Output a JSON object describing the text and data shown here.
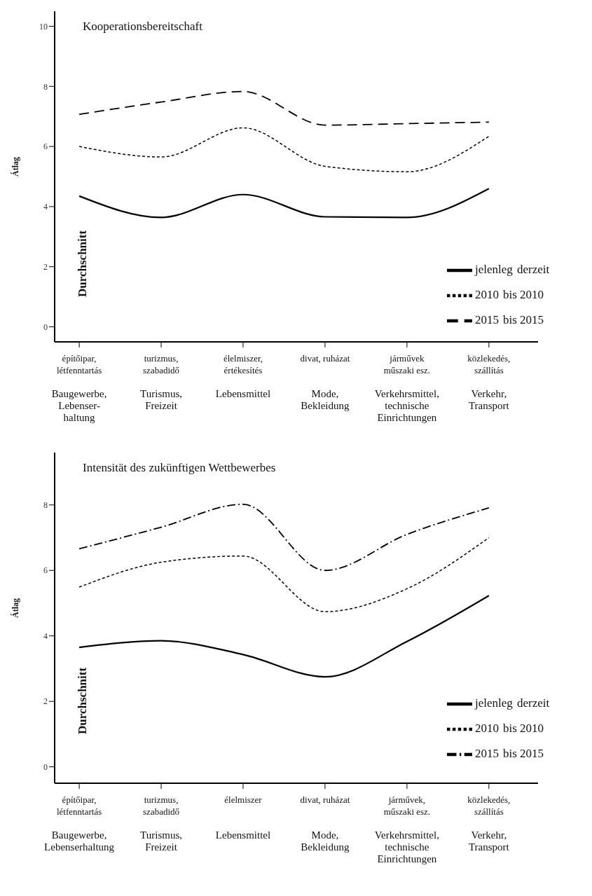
{
  "chart_data": [
    {
      "type": "line",
      "title": "Kooperationsbereitschaft",
      "ylabel": "Átlag",
      "annotations": [
        "Durchschnitt"
      ],
      "categories": [
        "építőipar,\nlétfenntartás\n\nBaugewerbe,\nLebenser-\nhaltung",
        "turizmus,\nszabadidő\n\nTurismus,\nFreizeit",
        "élelmiszer,\nértékesítés\n\nLebensmittel",
        "divat, ruházat\n\n\nMode,\nBekleidung",
        "járművek\nműszaki esz.\n\nVerkehrsmittel,\ntechnische\nEinrichtungen",
        "közlekedés,\nszállítás\n\nVerkehr,\nTransport"
      ],
      "series": [
        {
          "name": "jelenleg\tderzeit",
          "color": "#000000",
          "line_style": "solid",
          "values": [
            4.35,
            3.64,
            4.4,
            3.66,
            3.64,
            4.6
          ]
        },
        {
          "name": "2010\tbis 2010",
          "color": "#000000",
          "line_style": "dotted",
          "values": [
            6.0,
            5.65,
            6.62,
            5.34,
            5.16,
            6.34
          ]
        },
        {
          "name": "2015\tbis 2015",
          "color": "#000000",
          "line_style": "dashed",
          "values": [
            7.07,
            7.48,
            7.83,
            6.71,
            6.76,
            6.81
          ]
        }
      ],
      "ylim": [
        -0.5,
        10.5
      ],
      "yticks": [
        0,
        2,
        4,
        6,
        8,
        10
      ],
      "grid": false,
      "legend": "bottom right",
      "marker": "none"
    },
    {
      "type": "line",
      "title": "Intensität des zukünftigen Wettbewerbes",
      "ylabel": "Átlag",
      "annotations": [
        "Durchschnitt"
      ],
      "categories": [
        "építőipar,\nlétfenntartás\n\nBaugewerbe,\nLebenserhaltung",
        "turizmus,\nszabadidő\n\nTurismus,\nFreizeit",
        "élelmiszer\n\n\nLebensmittel",
        "divat, ruházat\n\n\nMode,\nBekleidung",
        "járművek,\nműszaki esz.\n\nVerkehrsmittel,\ntechnische\nEinrichtungen",
        "közlekedés,\nszállítás\n\nVerkehr,\nTransport"
      ],
      "series": [
        {
          "name": "jelenleg\tderzeit",
          "color": "#000000",
          "line_style": "solid",
          "values": [
            3.65,
            3.85,
            3.43,
            2.75,
            3.83,
            5.23
          ]
        },
        {
          "name": "2010\tbis 2010",
          "color": "#000000",
          "line_style": "dotted",
          "values": [
            5.49,
            6.25,
            6.44,
            4.74,
            5.44,
            7.0
          ]
        },
        {
          "name": "2015\tbis 2015",
          "color": "#000000",
          "line_style": "dashdot",
          "values": [
            6.66,
            7.32,
            8.02,
            6.0,
            7.1,
            7.91
          ]
        }
      ],
      "ylim": [
        -0.5,
        9.6
      ],
      "yticks": [
        0,
        2,
        4,
        6,
        8
      ],
      "grid": false,
      "legend": "bottom right",
      "marker": "none"
    }
  ]
}
